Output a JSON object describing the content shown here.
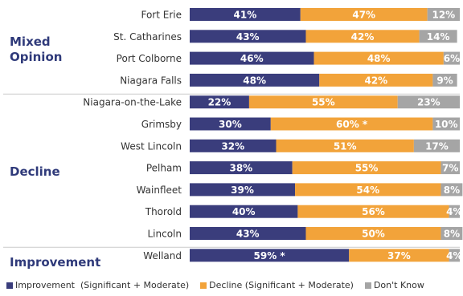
{
  "chart_data": {
    "type": "bar",
    "orientation": "horizontal",
    "stacked": true,
    "title": "",
    "xlabel": "",
    "ylabel": "",
    "xlim": [
      0,
      100
    ],
    "grid": false,
    "legend_position": "bottom",
    "colors": {
      "improvement": "#3a3d7c",
      "decline": "#f2a33a",
      "dont_know": "#a5a5a5"
    },
    "categories": [
      "Fort Erie",
      "St. Catharines",
      "Port Colborne",
      "Niagara Falls",
      "Niagara-on-the-Lake",
      "Grimsby",
      "West Lincoln",
      "Pelham",
      "Wainfleet",
      "Thorold",
      "Lincoln",
      "Welland"
    ],
    "series": [
      {
        "name": "Improvement  (Significant + Moderate)",
        "key": "improvement",
        "values": [
          41,
          43,
          46,
          48,
          22,
          30,
          32,
          38,
          39,
          40,
          43,
          59
        ]
      },
      {
        "name": "Decline (Significant + Moderate)",
        "key": "decline",
        "values": [
          47,
          42,
          48,
          42,
          55,
          60,
          51,
          55,
          54,
          56,
          50,
          37
        ]
      },
      {
        "name": "Don't Know",
        "key": "dont_know",
        "values": [
          12,
          14,
          6,
          9,
          23,
          10,
          17,
          7,
          8,
          4,
          8,
          4
        ]
      }
    ],
    "labels": {
      "improvement": [
        "41%",
        "43%",
        "46%",
        "48%",
        "22%",
        "30%",
        "32%",
        "38%",
        "39%",
        "40%",
        "43%",
        "59% *"
      ],
      "decline": [
        "47%",
        "42%",
        "48%",
        "42%",
        "55%",
        "60% *",
        "51%",
        "55%",
        "54%",
        "56%",
        "50%",
        "37%"
      ],
      "dont_know": [
        "12%",
        "14%",
        "6%",
        "9%",
        "23%",
        "10%",
        "17%",
        "7%",
        "8%",
        "4%",
        "8%",
        "4%"
      ]
    },
    "groups": [
      {
        "label_lines": [
          "Mixed",
          "Opinion"
        ],
        "from": 0,
        "to": 3
      },
      {
        "label_lines": [
          "Decline"
        ],
        "from": 4,
        "to": 10
      },
      {
        "label_lines": [
          "Improvement"
        ],
        "from": 11,
        "to": 11
      }
    ]
  }
}
